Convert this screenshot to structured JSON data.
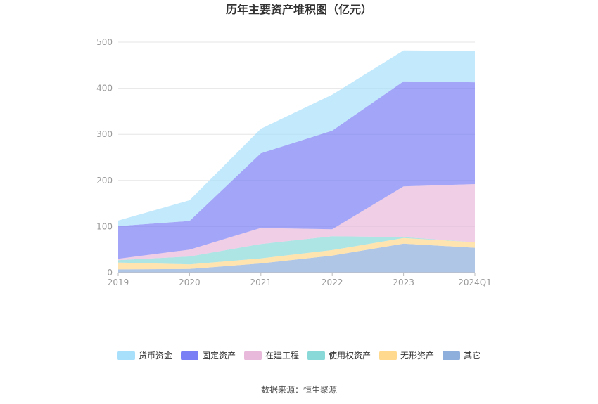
{
  "chart_data": {
    "type": "area",
    "stacked": true,
    "title": "历年主要资产堆积图（亿元）",
    "categories": [
      "2019",
      "2020",
      "2021",
      "2022",
      "2023",
      "2024Q1"
    ],
    "ylim": [
      0,
      500
    ],
    "yticks": [
      0,
      100,
      200,
      300,
      400,
      500
    ],
    "grid": true,
    "legend_position": "bottom",
    "series": [
      {
        "name": "其它",
        "color": "#8eaedb",
        "values": [
          7,
          8,
          20,
          37,
          63,
          54
        ]
      },
      {
        "name": "无形资产",
        "color": "#ffd98e",
        "values": [
          15,
          10,
          11,
          12,
          12,
          12
        ]
      },
      {
        "name": "使用权资产",
        "color": "#8ad9d9",
        "values": [
          5,
          17,
          31,
          30,
          2,
          0
        ]
      },
      {
        "name": "在建工程",
        "color": "#e8b9db",
        "values": [
          3,
          15,
          35,
          15,
          110,
          126
        ]
      },
      {
        "name": "固定资产",
        "color": "#7b7ff5",
        "values": [
          71,
          62,
          162,
          214,
          228,
          221
        ]
      },
      {
        "name": "货币资金",
        "color": "#a8e0fb",
        "values": [
          12,
          45,
          53,
          78,
          67,
          68
        ]
      }
    ],
    "legend_order": [
      "货币资金",
      "固定资产",
      "在建工程",
      "使用权资产",
      "无形资产",
      "其它"
    ]
  },
  "source_text": "数据来源：恒生聚源"
}
